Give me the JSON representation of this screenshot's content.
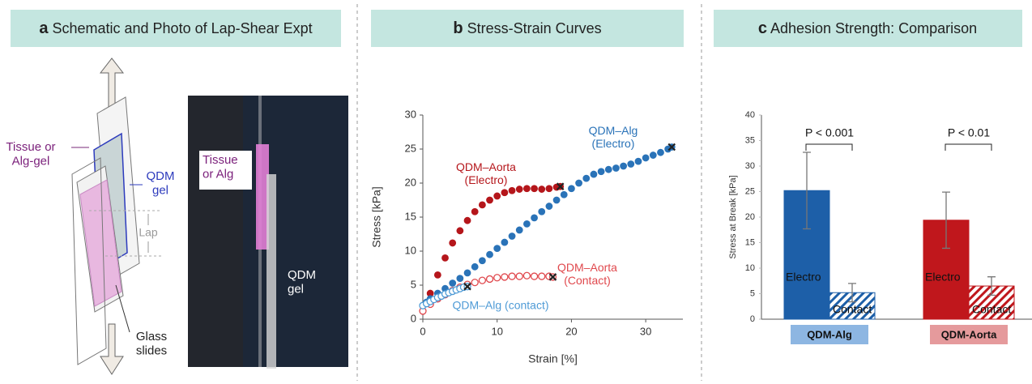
{
  "panel_a": {
    "label": "a",
    "title": "Schematic and Photo of Lap-Shear Expt",
    "tissue_label": "Tissue or\nAlg-gel",
    "qdm_label": "QDM\ngel",
    "lap_label": "Lap",
    "glass_label": "Glass\nslides",
    "photo_tissue_label": "Tissue\nor Alg",
    "photo_qdm_label": "QDM\ngel"
  },
  "chart_data": [
    {
      "type": "scatter",
      "panel": "b",
      "title": "Stress-Strain Curves",
      "x_label": "Strain [%]",
      "y_label": "Stress [kPa]",
      "xlim": [
        0,
        35
      ],
      "xticks": [
        0,
        10,
        20,
        30
      ],
      "ylim": [
        0,
        30
      ],
      "yticks": [
        0,
        5,
        10,
        15,
        20,
        25,
        30
      ],
      "series": [
        {
          "name": "QDM–Aorta\n(Electro)",
          "color": "#b5161b",
          "filled": true,
          "x": [
            1,
            2,
            3,
            4,
            5,
            6,
            7,
            8,
            9,
            10,
            11,
            12,
            13,
            14,
            15,
            16,
            17,
            18,
            18.5
          ],
          "values": [
            3.8,
            6.5,
            9,
            11.2,
            13,
            14.5,
            15.8,
            16.8,
            17.5,
            18.1,
            18.6,
            18.9,
            19.1,
            19.2,
            19.2,
            19.1,
            19.2,
            19.4,
            19.5
          ]
        },
        {
          "name": "QDM–Alg\n(Electro)",
          "color": "#2a73b8",
          "filled": true,
          "x": [
            0.5,
            1,
            2,
            3,
            4,
            5,
            6,
            7,
            8,
            9,
            10,
            11,
            12,
            13,
            14,
            15,
            16,
            17,
            18,
            19,
            20,
            21,
            22,
            23,
            24,
            25,
            26,
            27,
            28,
            29,
            30,
            31,
            32,
            33,
            33.5
          ],
          "values": [
            2.5,
            3,
            3.8,
            4.5,
            5.3,
            6,
            6.8,
            7.7,
            8.6,
            9.5,
            10.4,
            11.3,
            12.2,
            13.1,
            14,
            14.9,
            15.8,
            16.6,
            17.5,
            18.3,
            19.2,
            20,
            20.7,
            21.3,
            21.7,
            22,
            22.2,
            22.5,
            22.8,
            23.2,
            23.7,
            24.1,
            24.5,
            25,
            25.3
          ]
        },
        {
          "name": "QDM–Aorta\n(Contact)",
          "color": "#e0484d",
          "filled": false,
          "x": [
            0,
            1,
            2,
            3,
            4,
            5,
            6,
            7,
            8,
            9,
            10,
            11,
            12,
            13,
            14,
            15,
            16,
            17,
            17.5
          ],
          "values": [
            1.2,
            2.2,
            3,
            3.6,
            4.2,
            4.7,
            5.1,
            5.4,
            5.7,
            5.9,
            6.1,
            6.2,
            6.3,
            6.3,
            6.4,
            6.3,
            6.3,
            6.3,
            6.2
          ]
        },
        {
          "name": "QDM–Alg (contact)",
          "color": "#4f9bd6",
          "filled": false,
          "x": [
            0,
            0.5,
            1,
            1.5,
            2,
            2.5,
            3,
            3.5,
            4,
            4.5,
            5,
            5.5,
            6
          ],
          "values": [
            2,
            2.3,
            2.6,
            2.9,
            3.2,
            3.4,
            3.7,
            3.9,
            4.1,
            4.3,
            4.5,
            4.7,
            4.8
          ]
        }
      ]
    },
    {
      "type": "bar",
      "panel": "c",
      "title": "Adhesion Strength: Comparison",
      "y_label": "Stress at Break [kPa]",
      "ylim": [
        0,
        40
      ],
      "yticks": [
        0,
        5,
        10,
        15,
        20,
        25,
        30,
        35,
        40
      ],
      "categories": [
        "QDM-Alg",
        "QDM-Aorta"
      ],
      "series": [
        {
          "name": "Electro",
          "colors": [
            "#1d5fa8",
            "#c0171c"
          ],
          "hatched": false,
          "values": [
            25.2,
            19.4
          ],
          "errors": [
            7.5,
            5.5
          ]
        },
        {
          "name": "Contact",
          "colors": [
            "#1d5fa8",
            "#c0171c"
          ],
          "hatched": true,
          "values": [
            5.2,
            6.5
          ],
          "errors": [
            1.8,
            1.8
          ]
        }
      ],
      "annotations": [
        "P < 0.001",
        "P < 0.01"
      ]
    }
  ]
}
